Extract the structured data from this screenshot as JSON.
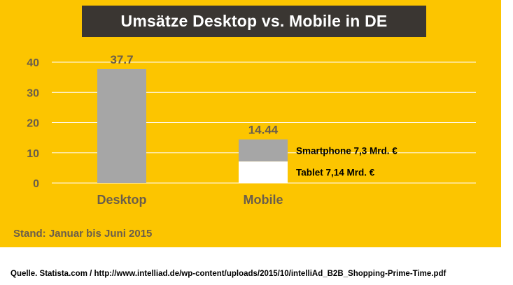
{
  "title": "Umsätze Desktop vs. Mobile in DE",
  "stand": "Stand: Januar bis Juni 2015",
  "source": "Quelle. Statista.com / http://www.intelliad.de/wp-content/uploads/2015/10/intelliAd_B2B_Shopping-Prime-Time.pdf",
  "colors": {
    "background": "#fcc500",
    "title_box": "#3a3632",
    "bar": "#a6a6a6",
    "tablet": "#ffffff",
    "axis_text": "#6b5e4a",
    "gridline": "#ffffff"
  },
  "chart_data": {
    "type": "bar",
    "stacked": true,
    "title": "Umsätze Desktop vs. Mobile in DE",
    "categories": [
      "Desktop",
      "Mobile"
    ],
    "totals": [
      "37.7",
      "14.44"
    ],
    "series": [
      {
        "name": "Tablet 7,14 Mrd. €",
        "values": [
          0,
          7.14
        ]
      },
      {
        "name": "Smartphone 7,3 Mrd. €",
        "values": [
          0,
          7.3
        ]
      },
      {
        "name": "Desktop",
        "values": [
          37.7,
          0
        ]
      }
    ],
    "segment_labels": [
      "Smartphone 7,3 Mrd. €",
      "Tablet 7,14 Mrd. €"
    ],
    "yticks": [
      "0",
      "10",
      "20",
      "30",
      "40"
    ],
    "ylim": [
      0,
      40
    ],
    "grid": true,
    "xlabel": "",
    "ylabel": ""
  }
}
